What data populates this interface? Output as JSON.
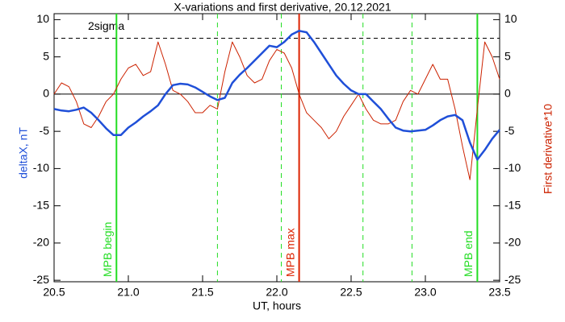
{
  "chart_data": {
    "type": "line",
    "title": "X-variations and first derivative, 20.12.2021",
    "xlabel": "UT, hours",
    "ylabel": "deltaX, nT",
    "y2label": "First derivative*10",
    "x": [
      20.5,
      20.55,
      20.6,
      20.65,
      20.7,
      20.75,
      20.8,
      20.85,
      20.9,
      20.95,
      21.0,
      21.05,
      21.1,
      21.15,
      21.2,
      21.25,
      21.3,
      21.35,
      21.4,
      21.45,
      21.5,
      21.55,
      21.6,
      21.65,
      21.7,
      21.75,
      21.8,
      21.85,
      21.9,
      21.95,
      22.0,
      22.05,
      22.1,
      22.15,
      22.2,
      22.25,
      22.3,
      22.35,
      22.4,
      22.45,
      22.5,
      22.55,
      22.6,
      22.65,
      22.7,
      22.75,
      22.8,
      22.85,
      22.9,
      22.95,
      23.0,
      23.05,
      23.1,
      23.15,
      23.2,
      23.25,
      23.3,
      23.35,
      23.4,
      23.45,
      23.5
    ],
    "series": [
      {
        "name": "deltaX",
        "color": "#1f4fd8",
        "values": [
          -2,
          -2.2,
          -2.3,
          -2.1,
          -1.8,
          -2.5,
          -3.5,
          -4.6,
          -5.5,
          -5.5,
          -4.5,
          -3.8,
          -3,
          -2.3,
          -1.5,
          0,
          1.2,
          1.4,
          1.3,
          0.9,
          0.3,
          -0.3,
          -0.8,
          -0.5,
          1.5,
          2.6,
          3.5,
          4.5,
          5.5,
          6.5,
          6.3,
          7,
          8,
          8.5,
          8.3,
          7,
          5.5,
          4,
          2.5,
          1.4,
          0.5,
          0,
          0,
          -1,
          -2,
          -3.3,
          -4.5,
          -4.9,
          -5,
          -4.9,
          -4.8,
          -4.2,
          -3.5,
          -3,
          -2.8,
          -3.5,
          -6.5,
          -8.8,
          -7.5,
          -6,
          -4.8
        ]
      },
      {
        "name": "First derivative*10",
        "color": "#cc2200",
        "axis": "y2",
        "values": [
          0,
          1.5,
          1,
          -1,
          -4,
          -4.5,
          -3,
          -1,
          0,
          2,
          3.5,
          4,
          2.5,
          3,
          7,
          4,
          0.5,
          0,
          -1,
          -2.5,
          -2.5,
          -1.5,
          -2,
          3,
          7,
          5,
          2.5,
          1.5,
          2,
          4.5,
          6,
          5.5,
          3.5,
          0,
          -2.5,
          -3.5,
          -4.5,
          -6,
          -5,
          -3,
          -1.5,
          0,
          -2,
          -3.5,
          -4,
          -4,
          -3.5,
          -1,
          0.5,
          0,
          2,
          4,
          2,
          2,
          -2,
          -7,
          -11.5,
          -2,
          7,
          5,
          2
        ]
      }
    ],
    "xlim": [
      20.5,
      23.5
    ],
    "xticks": [
      20.5,
      {
        "value": 21,
        "label": "21.0"
      },
      21.5,
      {
        "value": 22,
        "label": "22.0"
      },
      22.5,
      {
        "value": 23,
        "label": "23.0"
      },
      23.5
    ],
    "ylim": [
      -25.2,
      10.8
    ],
    "yticks": [
      -25,
      -20,
      -15,
      -10,
      -5,
      0,
      5,
      10
    ],
    "y2lim": [
      -25.2,
      10.8
    ],
    "y2ticks": [
      -25,
      -20,
      -15,
      -10,
      -5,
      0,
      5,
      10
    ],
    "hline": {
      "value": 7.5,
      "label": "2sigma"
    },
    "vlines": [
      {
        "x": 20.92,
        "label": "MPB begin",
        "color": "#22dd22",
        "style": "solid"
      },
      {
        "x": 21.6,
        "color": "#22dd22",
        "style": "dashed"
      },
      {
        "x": 22.03,
        "color": "#22dd22",
        "style": "dashed"
      },
      {
        "x": 22.15,
        "label": "MPB max",
        "color": "#dd2200",
        "style": "solid"
      },
      {
        "x": 22.58,
        "color": "#22dd22",
        "style": "dashed"
      },
      {
        "x": 22.91,
        "color": "#22dd22",
        "style": "dashed"
      },
      {
        "x": 23.35,
        "label": "MPB end",
        "color": "#22dd22",
        "style": "solid"
      }
    ]
  }
}
